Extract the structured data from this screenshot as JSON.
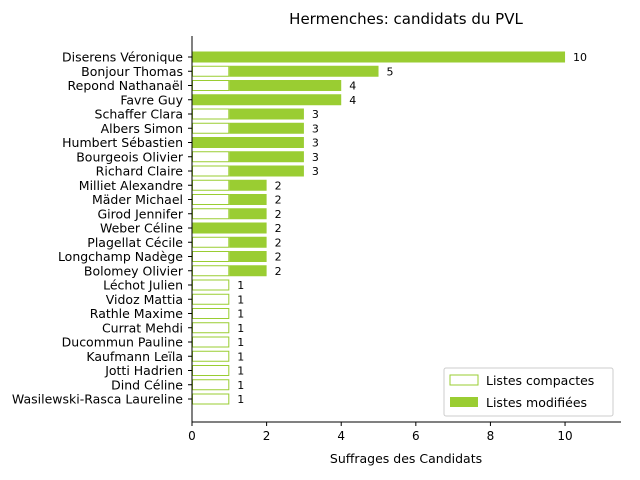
{
  "chart_data": {
    "type": "bar",
    "orientation": "horizontal",
    "stacked": true,
    "title": "Hermenches: candidats du PVL",
    "xlabel": "Suffrages des Candidats",
    "ylabel": "",
    "xlim": [
      0,
      11.5
    ],
    "xticks": [
      0,
      2,
      4,
      6,
      8,
      10
    ],
    "grid": false,
    "legend_position": "bottom-right",
    "colors": {
      "bar": "#9acd32",
      "compact_fill": "#ffffff"
    },
    "categories": [
      "Diserens Véronique",
      "Bonjour Thomas",
      "Repond Nathanaël",
      "Favre Guy",
      "Schaffer Clara",
      "Albers Simon",
      "Humbert Sébastien",
      "Bourgeois Olivier",
      "Richard Claire",
      "Milliet Alexandre",
      "Mäder Michael",
      "Girod Jennifer",
      "Weber Céline",
      "Plagellat Cécile",
      "Longchamp Nadège",
      "Bolomey Olivier",
      "Léchot Julien",
      "Vidoz Mattia",
      "Rathle Maxime",
      "Currat Mehdi",
      "Ducommun Pauline",
      "Kaufmann Leïla",
      "Jotti Hadrien",
      "Dind Céline",
      "Wasilewski-Rasca Laureline"
    ],
    "series": [
      {
        "name": "Listes compactes",
        "style": "outline",
        "values": [
          0,
          1,
          1,
          0,
          1,
          1,
          0,
          1,
          1,
          1,
          1,
          1,
          0,
          1,
          1,
          1,
          1,
          1,
          1,
          1,
          1,
          1,
          1,
          1,
          1
        ]
      },
      {
        "name": "Listes modifiées",
        "style": "filled",
        "values": [
          10,
          4,
          3,
          4,
          2,
          2,
          3,
          2,
          2,
          1,
          1,
          1,
          2,
          1,
          1,
          1,
          0,
          0,
          0,
          0,
          0,
          0,
          0,
          0,
          0
        ]
      }
    ],
    "totals": [
      10,
      5,
      4,
      4,
      3,
      3,
      3,
      3,
      3,
      2,
      2,
      2,
      2,
      2,
      2,
      2,
      1,
      1,
      1,
      1,
      1,
      1,
      1,
      1,
      1
    ]
  }
}
